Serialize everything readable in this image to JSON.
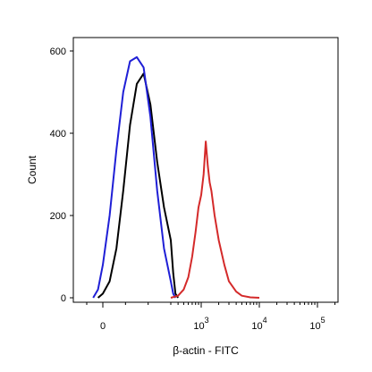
{
  "chart_data": {
    "type": "line",
    "title": "",
    "xlabel": "β-actin - FITC",
    "ylabel": "Count",
    "x_scale": "biexponential",
    "ylim": [
      0,
      640
    ],
    "grid": false,
    "y_ticks": [
      "0",
      "200",
      "400",
      "600"
    ],
    "x_tick_labels": [
      {
        "base": "0",
        "exp": ""
      },
      {
        "base": "10",
        "exp": "3"
      },
      {
        "base": "10",
        "exp": "4"
      },
      {
        "base": "10",
        "exp": "5"
      }
    ],
    "series": [
      {
        "color": "#000000",
        "x": [
          -30,
          0,
          30,
          60,
          90,
          120,
          150,
          180,
          210,
          240,
          270,
          300,
          330,
          360,
          400
        ],
        "y": [
          0,
          10,
          40,
          120,
          260,
          420,
          520,
          545,
          470,
          330,
          220,
          140,
          60,
          10,
          0
        ]
      },
      {
        "color": "#1f1fd6",
        "x": [
          -60,
          -30,
          0,
          30,
          60,
          90,
          120,
          150,
          180,
          210,
          240,
          270,
          300,
          330,
          360
        ],
        "y": [
          0,
          20,
          80,
          200,
          360,
          500,
          575,
          585,
          560,
          440,
          260,
          120,
          40,
          10,
          0
        ]
      },
      {
        "color": "#d42a2a",
        "x": [
          300,
          400,
          500,
          600,
          700,
          800,
          900,
          1000,
          1100,
          1200,
          1300,
          1400,
          1500,
          1700,
          2000,
          2500,
          3000,
          4000,
          5000,
          7000,
          10000
        ],
        "y": [
          0,
          5,
          20,
          50,
          100,
          160,
          220,
          250,
          300,
          380,
          320,
          280,
          260,
          200,
          140,
          80,
          40,
          15,
          5,
          1,
          0
        ]
      }
    ]
  }
}
